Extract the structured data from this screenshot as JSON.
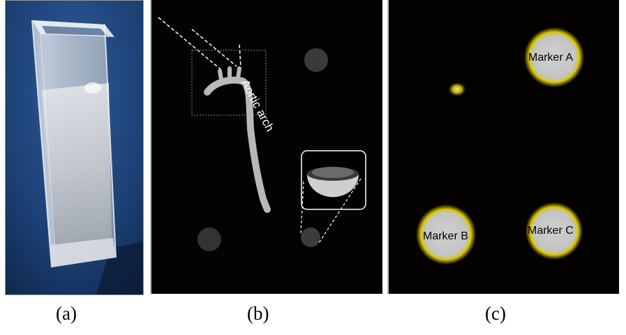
{
  "figure": {
    "captions": {
      "a": "(a)",
      "b": "(b)",
      "c": "(c)"
    },
    "panel_b": {
      "vessel_label": "Aortic arch"
    },
    "panel_c": {
      "marker_a": "Marker A",
      "marker_b": "Marker B",
      "marker_c": "Marker C"
    },
    "colors": {
      "panel_a_background": "#1c3f73",
      "panel_b_background": "#030303",
      "panel_c_background": "#030200",
      "marker_glow": "#d8c800"
    }
  }
}
